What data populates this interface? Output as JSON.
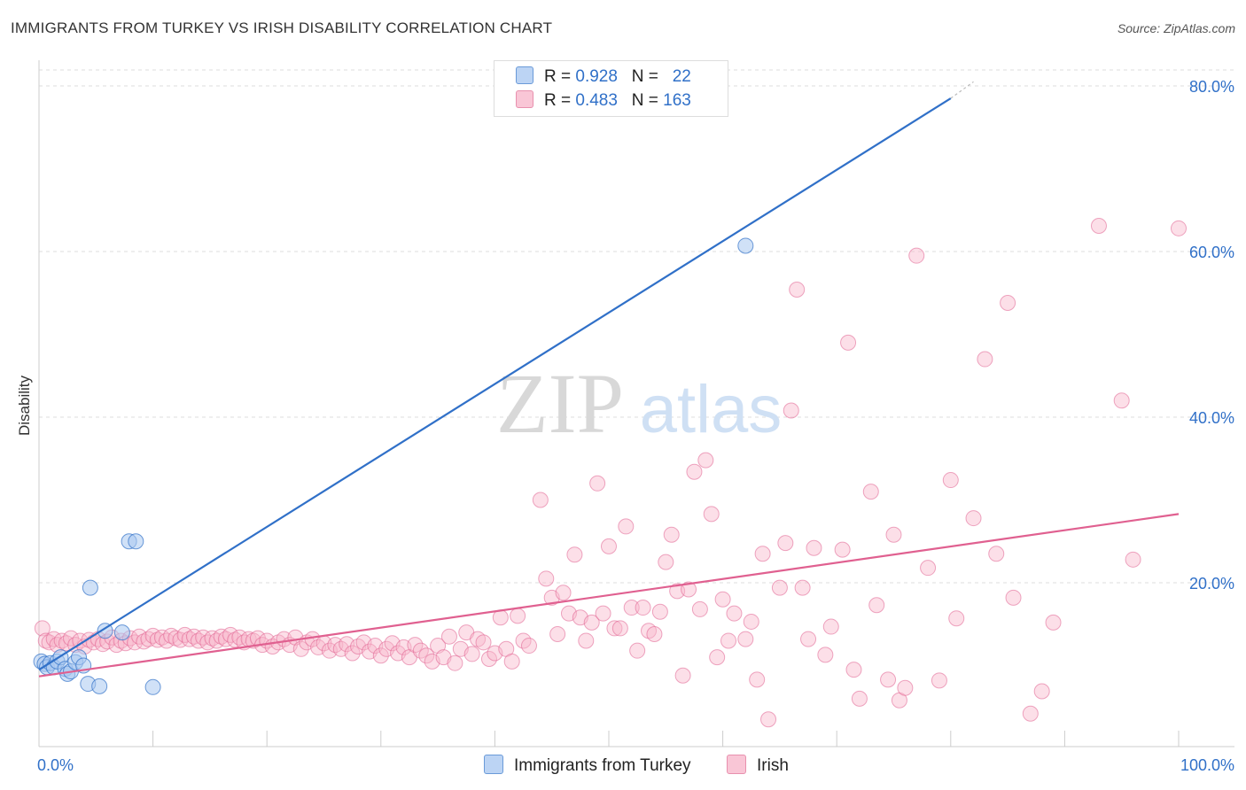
{
  "title": "IMMIGRANTS FROM TURKEY VS IRISH DISABILITY CORRELATION CHART",
  "source": "Source: ZipAtlas.com",
  "watermark": {
    "zip": "ZIP",
    "atlas": "atlas"
  },
  "legend": {
    "r_label": "R =",
    "n_label": "N =",
    "series": [
      {
        "r": "0.928",
        "n": "22"
      },
      {
        "r": "0.483",
        "n": "163"
      }
    ]
  },
  "chart_data": {
    "type": "scatter",
    "title": "IMMIGRANTS FROM TURKEY VS IRISH DISABILITY CORRELATION CHART",
    "xlabel": "",
    "ylabel": "Disability",
    "xlim": [
      0,
      100
    ],
    "ylim": [
      0,
      80
    ],
    "x_tick_labels": [
      "0.0%",
      "100.0%"
    ],
    "y_ticks": [
      20,
      40,
      60,
      80
    ],
    "y_tick_labels": [
      "20.0%",
      "40.0%",
      "60.0%",
      "80.0%"
    ],
    "colors": {
      "turkey_fill": "#aac8f0",
      "turkey_line": "#3070c8",
      "irish_fill": "#f8b8cc",
      "irish_line": "#e06090",
      "tick_label": "#3070c8",
      "grid": "#dddddd"
    },
    "series": [
      {
        "name": "Immigrants from Turkey",
        "trend": {
          "x": [
            0,
            80
          ],
          "y": [
            9.5,
            78.5
          ],
          "dash_to": [
            82,
            80.5
          ]
        },
        "points": [
          [
            0.2,
            10.5
          ],
          [
            0.5,
            10.2
          ],
          [
            0.7,
            9.8
          ],
          [
            1.0,
            10.3
          ],
          [
            1.3,
            9.8
          ],
          [
            1.6,
            10.5
          ],
          [
            1.9,
            11.0
          ],
          [
            2.3,
            9.6
          ],
          [
            2.5,
            9.0
          ],
          [
            2.8,
            9.3
          ],
          [
            3.2,
            10.4
          ],
          [
            3.5,
            11.0
          ],
          [
            3.9,
            10.0
          ],
          [
            4.3,
            7.8
          ],
          [
            5.3,
            7.5
          ],
          [
            4.5,
            19.4
          ],
          [
            5.8,
            14.2
          ],
          [
            7.3,
            14.0
          ],
          [
            7.9,
            25.0
          ],
          [
            8.5,
            25.0
          ],
          [
            10.0,
            7.4
          ],
          [
            62.0,
            60.7
          ]
        ]
      },
      {
        "name": "Irish",
        "trend": {
          "x": [
            0,
            100
          ],
          "y": [
            8.7,
            28.3
          ]
        },
        "points": [
          [
            0.3,
            14.5
          ],
          [
            0.6,
            13.0
          ],
          [
            0.9,
            12.8
          ],
          [
            1.3,
            13.2
          ],
          [
            1.6,
            12.5
          ],
          [
            2.0,
            13.0
          ],
          [
            2.4,
            12.7
          ],
          [
            2.8,
            13.3
          ],
          [
            3.2,
            12.5
          ],
          [
            3.6,
            13.0
          ],
          [
            4.0,
            12.3
          ],
          [
            4.4,
            13.1
          ],
          [
            4.8,
            12.8
          ],
          [
            5.2,
            13.2
          ],
          [
            5.6,
            12.6
          ],
          [
            6.0,
            12.9
          ],
          [
            6.4,
            13.4
          ],
          [
            6.8,
            12.5
          ],
          [
            7.2,
            13.0
          ],
          [
            7.6,
            12.7
          ],
          [
            8.0,
            13.3
          ],
          [
            8.4,
            12.8
          ],
          [
            8.8,
            13.5
          ],
          [
            9.2,
            12.9
          ],
          [
            9.6,
            13.2
          ],
          [
            10.0,
            13.6
          ],
          [
            10.4,
            13.1
          ],
          [
            10.8,
            13.4
          ],
          [
            11.2,
            13.0
          ],
          [
            11.6,
            13.6
          ],
          [
            12.0,
            13.3
          ],
          [
            12.4,
            13.1
          ],
          [
            12.8,
            13.7
          ],
          [
            13.2,
            13.2
          ],
          [
            13.6,
            13.5
          ],
          [
            14.0,
            13.0
          ],
          [
            14.4,
            13.4
          ],
          [
            14.8,
            12.8
          ],
          [
            15.2,
            13.3
          ],
          [
            15.6,
            13.0
          ],
          [
            16.0,
            13.5
          ],
          [
            16.4,
            13.2
          ],
          [
            16.8,
            13.7
          ],
          [
            17.2,
            13.1
          ],
          [
            17.6,
            13.4
          ],
          [
            18.0,
            12.8
          ],
          [
            18.4,
            13.2
          ],
          [
            18.8,
            13.0
          ],
          [
            19.2,
            13.3
          ],
          [
            19.6,
            12.5
          ],
          [
            20.0,
            13.0
          ],
          [
            20.5,
            12.3
          ],
          [
            21.0,
            12.8
          ],
          [
            21.5,
            13.2
          ],
          [
            22.0,
            12.5
          ],
          [
            22.5,
            13.4
          ],
          [
            23.0,
            12.0
          ],
          [
            23.5,
            12.8
          ],
          [
            24.0,
            13.2
          ],
          [
            24.5,
            12.2
          ],
          [
            25.0,
            12.7
          ],
          [
            25.5,
            11.8
          ],
          [
            26.0,
            12.5
          ],
          [
            26.5,
            12.0
          ],
          [
            27.0,
            12.6
          ],
          [
            27.5,
            11.5
          ],
          [
            28.0,
            12.3
          ],
          [
            28.5,
            12.8
          ],
          [
            29.0,
            11.7
          ],
          [
            29.5,
            12.4
          ],
          [
            30.0,
            11.2
          ],
          [
            30.5,
            12.0
          ],
          [
            31.0,
            12.7
          ],
          [
            31.5,
            11.5
          ],
          [
            32.0,
            12.2
          ],
          [
            32.5,
            11.0
          ],
          [
            33.0,
            12.5
          ],
          [
            33.5,
            11.8
          ],
          [
            34.0,
            11.2
          ],
          [
            34.5,
            10.5
          ],
          [
            35.0,
            12.4
          ],
          [
            35.5,
            11.0
          ],
          [
            36.0,
            13.5
          ],
          [
            36.5,
            10.3
          ],
          [
            37.0,
            12.0
          ],
          [
            37.5,
            14.0
          ],
          [
            38.0,
            11.4
          ],
          [
            38.5,
            13.2
          ],
          [
            39.0,
            12.8
          ],
          [
            39.5,
            10.8
          ],
          [
            40.0,
            11.5
          ],
          [
            40.5,
            15.8
          ],
          [
            41.0,
            12.0
          ],
          [
            41.5,
            10.5
          ],
          [
            42.0,
            16.0
          ],
          [
            42.5,
            13.0
          ],
          [
            43.0,
            12.4
          ],
          [
            44.0,
            30.0
          ],
          [
            44.5,
            20.5
          ],
          [
            45.0,
            18.2
          ],
          [
            45.5,
            13.8
          ],
          [
            46.0,
            18.8
          ],
          [
            46.5,
            16.3
          ],
          [
            47.0,
            23.4
          ],
          [
            47.5,
            15.8
          ],
          [
            48.0,
            13.0
          ],
          [
            48.5,
            15.2
          ],
          [
            49.0,
            32.0
          ],
          [
            49.5,
            16.3
          ],
          [
            50.0,
            24.4
          ],
          [
            50.5,
            14.5
          ],
          [
            51.0,
            14.5
          ],
          [
            51.5,
            26.8
          ],
          [
            52.0,
            17.0
          ],
          [
            52.5,
            11.8
          ],
          [
            53.0,
            17.0
          ],
          [
            53.5,
            14.2
          ],
          [
            54.0,
            13.8
          ],
          [
            54.5,
            16.5
          ],
          [
            55.0,
            22.5
          ],
          [
            55.5,
            25.8
          ],
          [
            56.0,
            19.0
          ],
          [
            56.5,
            8.8
          ],
          [
            57.0,
            19.2
          ],
          [
            57.5,
            33.4
          ],
          [
            58.0,
            16.8
          ],
          [
            58.5,
            34.8
          ],
          [
            59.0,
            28.3
          ],
          [
            59.5,
            11.0
          ],
          [
            60.0,
            18.0
          ],
          [
            60.5,
            13.0
          ],
          [
            61.0,
            16.3
          ],
          [
            62.0,
            13.2
          ],
          [
            62.5,
            15.3
          ],
          [
            63.0,
            8.3
          ],
          [
            63.5,
            23.5
          ],
          [
            64.0,
            3.5
          ],
          [
            65.0,
            19.4
          ],
          [
            65.5,
            24.8
          ],
          [
            66.0,
            40.8
          ],
          [
            66.5,
            55.4
          ],
          [
            67.0,
            19.4
          ],
          [
            67.5,
            13.2
          ],
          [
            68.0,
            24.2
          ],
          [
            69.0,
            11.3
          ],
          [
            69.5,
            14.7
          ],
          [
            70.5,
            24.0
          ],
          [
            71.0,
            49.0
          ],
          [
            71.5,
            9.5
          ],
          [
            72.0,
            6.0
          ],
          [
            73.0,
            31.0
          ],
          [
            73.5,
            17.3
          ],
          [
            74.5,
            8.3
          ],
          [
            75.0,
            25.8
          ],
          [
            75.5,
            5.8
          ],
          [
            76.0,
            7.3
          ],
          [
            77.0,
            59.5
          ],
          [
            78.0,
            21.8
          ],
          [
            79.0,
            8.2
          ],
          [
            80.0,
            32.4
          ],
          [
            80.5,
            15.7
          ],
          [
            82.0,
            27.8
          ],
          [
            83.0,
            47.0
          ],
          [
            84.0,
            23.5
          ],
          [
            85.0,
            53.8
          ],
          [
            85.5,
            18.2
          ],
          [
            87.0,
            4.2
          ],
          [
            88.0,
            6.9
          ],
          [
            89.0,
            15.2
          ],
          [
            93.0,
            63.1
          ],
          [
            95.0,
            42.0
          ],
          [
            96.0,
            22.8
          ],
          [
            100.0,
            62.8
          ]
        ]
      }
    ]
  },
  "bottom_legend": [
    {
      "label": "Immigrants from Turkey"
    },
    {
      "label": "Irish"
    }
  ]
}
